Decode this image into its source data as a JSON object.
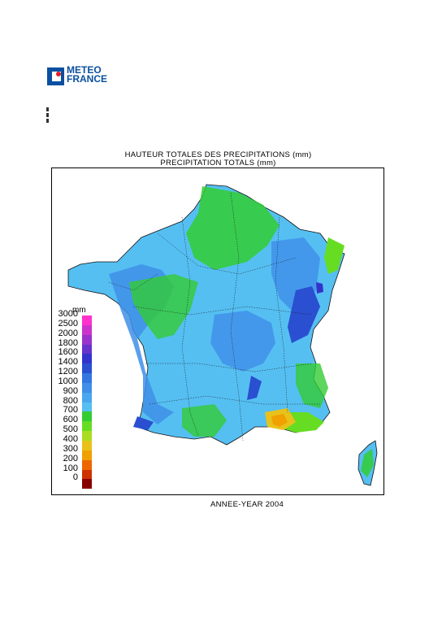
{
  "logo": {
    "line1": "METEO",
    "line2": "FRANCE",
    "brand_color": "#0a4fa0"
  },
  "title": {
    "line1": "HAUTEUR TOTALES DES PRECIPITATIONS (mm)",
    "line2": "PRECIPITATION TOTALS (mm)"
  },
  "legend": {
    "unit": "mm",
    "labels": [
      "3000",
      "2500",
      "2000",
      "1800",
      "1600",
      "1400",
      "1200",
      "1000",
      "900",
      "800",
      "700",
      "600",
      "500",
      "400",
      "300",
      "200",
      "100",
      "0"
    ],
    "colors": [
      "#ff33cc",
      "#cc33cc",
      "#9933cc",
      "#6633cc",
      "#3333cc",
      "#2a4fd0",
      "#3377e0",
      "#3f8fe8",
      "#4aa6ee",
      "#55bff2",
      "#33cc33",
      "#66dd22",
      "#aadd22",
      "#e8c21a",
      "#f0a000",
      "#ee6600",
      "#cc3300",
      "#880000"
    ]
  },
  "caption": "ANNEE-YEAR 2004"
}
